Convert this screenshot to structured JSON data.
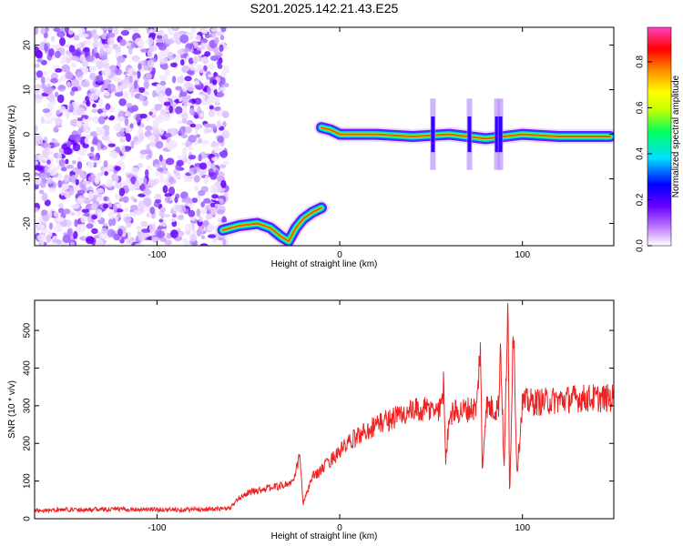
{
  "figure": {
    "title": "S201.2025.142.21.43.E25"
  },
  "chart_data": [
    {
      "type": "heatmap",
      "xlabel": "Height of straight line (km)",
      "ylabel": "Frequency (Hz)",
      "xlim": [
        -167,
        150
      ],
      "ylim": [
        -25,
        24
      ],
      "xticks": [
        -100,
        0,
        100
      ],
      "yticks": [
        -20,
        -10,
        0,
        10,
        20
      ],
      "colorbar": {
        "label": "Normalized spectral amplitude",
        "range": [
          0,
          0.95
        ],
        "ticks": [
          0.0,
          0.2,
          0.4,
          0.6,
          0.8
        ],
        "colormap": [
          "#ffffff",
          "#c080ff",
          "#6a00ff",
          "#0000ff",
          "#00e0ff",
          "#00ff60",
          "#c0ff00",
          "#ffff00",
          "#ff9000",
          "#ff0000",
          "#ff40c0"
        ]
      },
      "features": {
        "noise_region_x": [
          -167,
          -62
        ],
        "low_track": [
          {
            "x": -64,
            "y": -21.5
          },
          {
            "x": -55,
            "y": -20.5
          },
          {
            "x": -45,
            "y": -20
          },
          {
            "x": -38,
            "y": -21
          },
          {
            "x": -32,
            "y": -23
          },
          {
            "x": -28,
            "y": -24
          },
          {
            "x": -24,
            "y": -21
          },
          {
            "x": -20,
            "y": -19
          },
          {
            "x": -15,
            "y": -17.5
          },
          {
            "x": -10,
            "y": -16.5
          }
        ],
        "high_track": [
          {
            "x": -10,
            "y": 1.5
          },
          {
            "x": -5,
            "y": 1
          },
          {
            "x": 0,
            "y": 0
          },
          {
            "x": 20,
            "y": 0
          },
          {
            "x": 40,
            "y": -0.5
          },
          {
            "x": 60,
            "y": 0
          },
          {
            "x": 80,
            "y": -1
          },
          {
            "x": 100,
            "y": 0
          },
          {
            "x": 120,
            "y": -0.5
          },
          {
            "x": 148,
            "y": -0.5
          }
        ],
        "vertical_spikes_x": [
          51,
          71,
          86,
          88
        ]
      }
    },
    {
      "type": "line",
      "xlabel": "Height of straight line (km)",
      "ylabel": "SNR (10 * v/v)",
      "xlim": [
        -167,
        150
      ],
      "ylim": [
        0,
        580
      ],
      "xticks": [
        -100,
        0,
        100
      ],
      "yticks": [
        0,
        100,
        200,
        300,
        400,
        500
      ],
      "series": [
        {
          "color": "#ee2222",
          "x": [
            -167,
            -150,
            -130,
            -110,
            -90,
            -70,
            -60,
            -55,
            -50,
            -40,
            -35,
            -30,
            -25,
            -22,
            -20,
            -15,
            -10,
            -5,
            0,
            5,
            10,
            20,
            30,
            40,
            50,
            55,
            57,
            58,
            60,
            70,
            75,
            77,
            78,
            80,
            85,
            87,
            88,
            90,
            92,
            93,
            95,
            97,
            100,
            110,
            120,
            130,
            140,
            150
          ],
          "y": [
            22,
            24,
            25,
            25,
            24,
            25,
            28,
            55,
            70,
            80,
            85,
            90,
            100,
            170,
            40,
            110,
            130,
            155,
            180,
            200,
            220,
            250,
            270,
            285,
            290,
            290,
            360,
            150,
            280,
            290,
            295,
            470,
            120,
            300,
            290,
            300,
            470,
            120,
            590,
            40,
            540,
            120,
            310,
            310,
            315,
            320,
            320,
            320
          ]
        }
      ]
    }
  ]
}
